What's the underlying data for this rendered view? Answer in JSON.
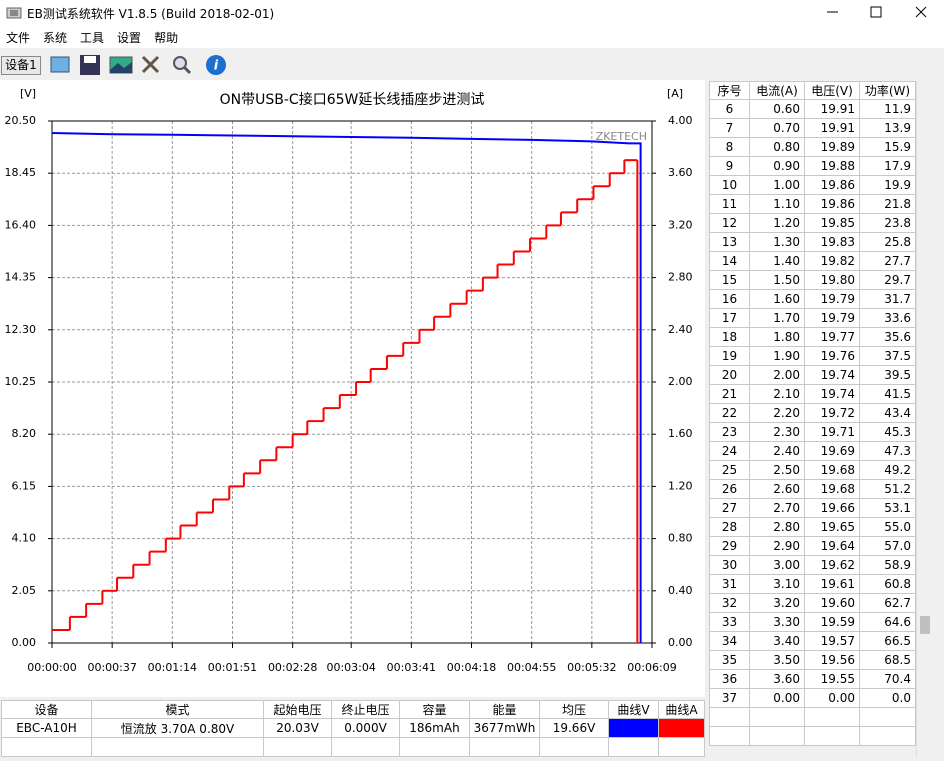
{
  "window": {
    "title": "EB测试系统软件 V1.8.5 (Build 2018-02-01)"
  },
  "menu": [
    "文件",
    "系统",
    "工具",
    "设置",
    "帮助"
  ],
  "toolbar": {
    "device_button": "设备1"
  },
  "chart_data": {
    "type": "line",
    "title": "ON带USB-C接口65W延长线插座步进测试",
    "ylabel": "[V]",
    "y2label": "[A]",
    "watermark": "ZKETECH",
    "xlim": [
      0,
      369
    ],
    "xticks": [
      {
        "value": 0,
        "label": "00:00:00"
      },
      {
        "value": 37,
        "label": "00:00:37"
      },
      {
        "value": 74,
        "label": "00:01:14"
      },
      {
        "value": 111,
        "label": "00:01:51"
      },
      {
        "value": 148,
        "label": "00:02:28"
      },
      {
        "value": 184,
        "label": "00:03:04"
      },
      {
        "value": 221,
        "label": "00:03:41"
      },
      {
        "value": 258,
        "label": "00:04:18"
      },
      {
        "value": 295,
        "label": "00:04:55"
      },
      {
        "value": 332,
        "label": "00:05:32"
      },
      {
        "value": 369,
        "label": "00:06:09"
      }
    ],
    "ylim": [
      0,
      20.5
    ],
    "yticks": [
      {
        "value": 0,
        "label": "0.00"
      },
      {
        "value": 2.05,
        "label": "2.05"
      },
      {
        "value": 4.1,
        "label": "4.10"
      },
      {
        "value": 6.15,
        "label": "6.15"
      },
      {
        "value": 8.2,
        "label": "8.20"
      },
      {
        "value": 10.25,
        "label": "10.25"
      },
      {
        "value": 12.3,
        "label": "12.30"
      },
      {
        "value": 14.35,
        "label": "14.35"
      },
      {
        "value": 16.4,
        "label": "16.40"
      },
      {
        "value": 18.45,
        "label": "18.45"
      },
      {
        "value": 20.5,
        "label": "20.50"
      }
    ],
    "y2lim": [
      0,
      4
    ],
    "y2ticks": [
      {
        "value": 0,
        "label": "0.00"
      },
      {
        "value": 0.4,
        "label": "0.40"
      },
      {
        "value": 0.8,
        "label": "0.80"
      },
      {
        "value": 1.2,
        "label": "1.20"
      },
      {
        "value": 1.6,
        "label": "1.60"
      },
      {
        "value": 2,
        "label": "2.00"
      },
      {
        "value": 2.4,
        "label": "2.40"
      },
      {
        "value": 2.8,
        "label": "2.80"
      },
      {
        "value": 3.2,
        "label": "3.20"
      },
      {
        "value": 3.6,
        "label": "3.60"
      },
      {
        "value": 4,
        "label": "4.00"
      }
    ],
    "grid": true,
    "series": [
      {
        "color": "#0000ff",
        "drawstyle": "line",
        "x": [
          0,
          37,
          74,
          111,
          148,
          184,
          221,
          258,
          295,
          332,
          355,
          362,
          362
        ],
        "values": [
          20.03,
          19.98,
          19.96,
          19.93,
          19.9,
          19.87,
          19.84,
          19.8,
          19.76,
          19.7,
          19.62,
          19.62,
          0
        ]
      },
      {
        "color": "#ff0000",
        "drawstyle": "steps-post",
        "axis": "y2",
        "x": [
          0,
          11,
          21,
          31,
          40,
          50,
          60,
          70,
          79,
          89,
          99,
          109,
          118,
          128,
          138,
          148,
          157,
          167,
          177,
          187,
          196,
          206,
          216,
          226,
          235,
          245,
          255,
          265,
          274,
          284,
          294,
          304,
          313,
          323,
          333,
          343,
          352,
          360
        ],
        "values": [
          0.1,
          0.2,
          0.3,
          0.4,
          0.5,
          0.6,
          0.7,
          0.8,
          0.9,
          1.0,
          1.1,
          1.2,
          1.3,
          1.4,
          1.5,
          1.6,
          1.7,
          1.8,
          1.9,
          2.0,
          2.1,
          2.2,
          2.3,
          2.4,
          2.5,
          2.6,
          2.7,
          2.8,
          2.9,
          3.0,
          3.1,
          3.2,
          3.3,
          3.4,
          3.5,
          3.6,
          3.7,
          0
        ]
      }
    ]
  },
  "bottom_table": {
    "headers": [
      "设备",
      "模式",
      "起始电压",
      "终止电压",
      "容量",
      "能量",
      "均压",
      "曲线V",
      "曲线A"
    ],
    "row": [
      "EBC-A10H",
      "恒流放 3.70A 0.80V",
      "20.03V",
      "0.000V",
      "186mAh",
      "3677mWh",
      "19.66V"
    ]
  },
  "side_table": {
    "headers": [
      "序号",
      "电流(A)",
      "电压(V)",
      "功率(W)"
    ],
    "rows": [
      [
        "6",
        "0.60",
        "19.91",
        "11.9"
      ],
      [
        "7",
        "0.70",
        "19.91",
        "13.9"
      ],
      [
        "8",
        "0.80",
        "19.89",
        "15.9"
      ],
      [
        "9",
        "0.90",
        "19.88",
        "17.9"
      ],
      [
        "10",
        "1.00",
        "19.86",
        "19.9"
      ],
      [
        "11",
        "1.10",
        "19.86",
        "21.8"
      ],
      [
        "12",
        "1.20",
        "19.85",
        "23.8"
      ],
      [
        "13",
        "1.30",
        "19.83",
        "25.8"
      ],
      [
        "14",
        "1.40",
        "19.82",
        "27.7"
      ],
      [
        "15",
        "1.50",
        "19.80",
        "29.7"
      ],
      [
        "16",
        "1.60",
        "19.79",
        "31.7"
      ],
      [
        "17",
        "1.70",
        "19.79",
        "33.6"
      ],
      [
        "18",
        "1.80",
        "19.77",
        "35.6"
      ],
      [
        "19",
        "1.90",
        "19.76",
        "37.5"
      ],
      [
        "20",
        "2.00",
        "19.74",
        "39.5"
      ],
      [
        "21",
        "2.10",
        "19.74",
        "41.5"
      ],
      [
        "22",
        "2.20",
        "19.72",
        "43.4"
      ],
      [
        "23",
        "2.30",
        "19.71",
        "45.3"
      ],
      [
        "24",
        "2.40",
        "19.69",
        "47.3"
      ],
      [
        "25",
        "2.50",
        "19.68",
        "49.2"
      ],
      [
        "26",
        "2.60",
        "19.68",
        "51.2"
      ],
      [
        "27",
        "2.70",
        "19.66",
        "53.1"
      ],
      [
        "28",
        "2.80",
        "19.65",
        "55.0"
      ],
      [
        "29",
        "2.90",
        "19.64",
        "57.0"
      ],
      [
        "30",
        "3.00",
        "19.62",
        "58.9"
      ],
      [
        "31",
        "3.10",
        "19.61",
        "60.8"
      ],
      [
        "32",
        "3.20",
        "19.60",
        "62.7"
      ],
      [
        "33",
        "3.30",
        "19.59",
        "64.6"
      ],
      [
        "34",
        "3.40",
        "19.57",
        "66.5"
      ],
      [
        "35",
        "3.50",
        "19.56",
        "68.5"
      ],
      [
        "36",
        "3.60",
        "19.55",
        "70.4"
      ],
      [
        "37",
        "0.00",
        "0.00",
        "0.0"
      ]
    ]
  }
}
